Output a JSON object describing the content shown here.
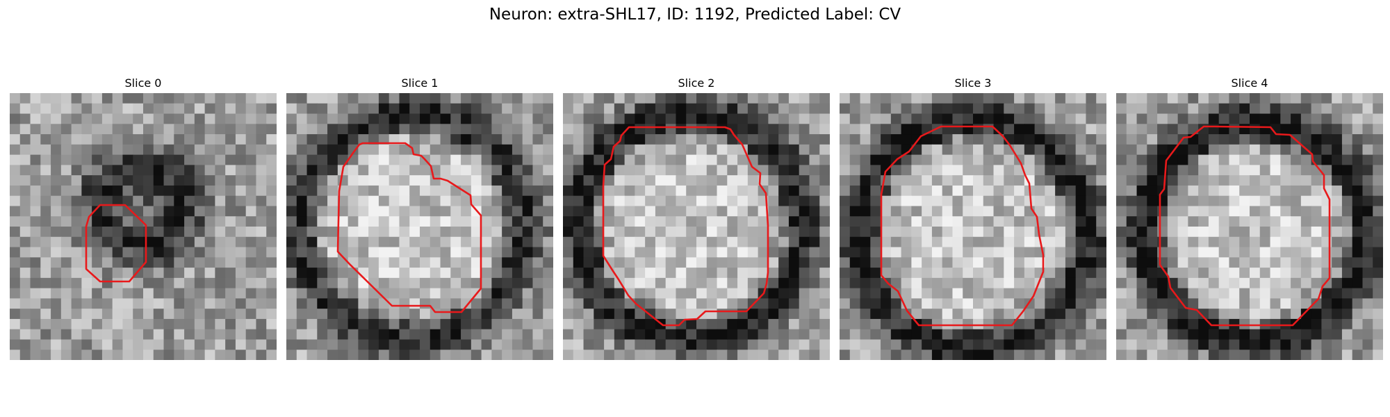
{
  "title": "Neuron: extra-SHL17, ID: 1192, Predicted Label: CV",
  "outline_color": "#e8191b",
  "panels": [
    {
      "title": "Slice 0"
    },
    {
      "title": "Slice 1"
    },
    {
      "title": "Slice 2"
    },
    {
      "title": "Slice 3"
    },
    {
      "title": "Slice 4"
    }
  ]
}
